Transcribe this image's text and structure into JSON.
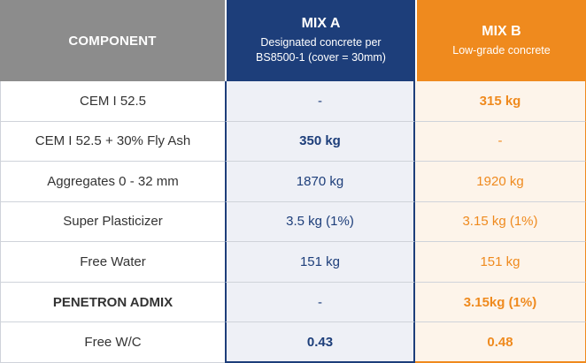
{
  "header": {
    "component": "COMPONENT",
    "mix_a": {
      "title": "MIX A",
      "subtitle_line1": "Designated concrete per",
      "subtitle_line2": "BS8500-1 (cover = 30mm)"
    },
    "mix_b": {
      "title": "MIX B",
      "subtitle": "Low-grade concrete"
    }
  },
  "rows": [
    {
      "component": "CEM I 52.5",
      "mix_a": "-",
      "mix_b": "315 kg"
    },
    {
      "component": "CEM I 52.5 + 30% Fly Ash",
      "mix_a": "350 kg",
      "mix_b": "-"
    },
    {
      "component": "Aggregates 0 - 32 mm",
      "mix_a": "1870 kg",
      "mix_b": "1920 kg"
    },
    {
      "component": "Super Plasticizer",
      "mix_a": "3.5 kg (1%)",
      "mix_b": "3.15 kg (1%)"
    },
    {
      "component": "Free Water",
      "mix_a": "151 kg",
      "mix_b": "151 kg"
    },
    {
      "component": "PENETRON ADMIX",
      "mix_a": "-",
      "mix_b": "3.15kg (1%)"
    },
    {
      "component": "Free W/C",
      "mix_a": "0.43",
      "mix_b": "0.48"
    }
  ],
  "colors": {
    "mix_a": "#1d3e7a",
    "mix_b": "#ef8a1e",
    "component_header": "#8c8c8c"
  }
}
